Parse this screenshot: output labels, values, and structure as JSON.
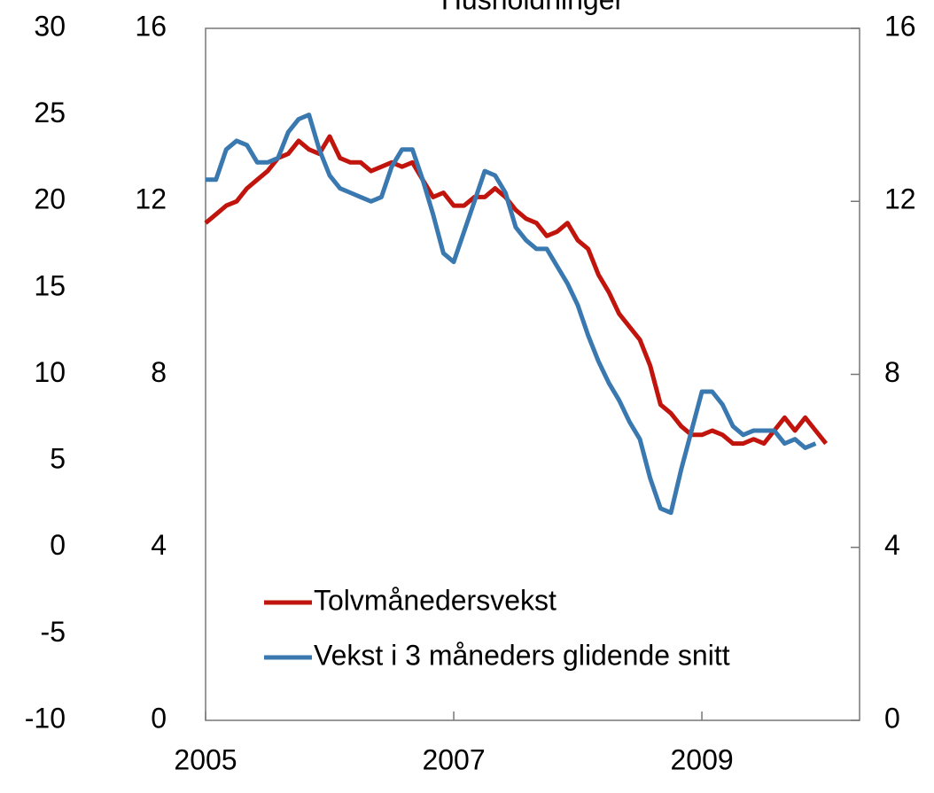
{
  "chart_data": {
    "type": "line",
    "title": "Husholdninger",
    "categories": [
      "2005",
      null,
      null,
      null,
      null,
      null,
      null,
      null,
      null,
      null,
      null,
      null,
      null,
      null,
      null,
      null,
      null,
      null,
      null,
      null,
      null,
      null,
      null,
      null,
      "2007",
      null,
      null,
      null,
      null,
      null,
      null,
      null,
      null,
      null,
      null,
      null,
      null,
      null,
      null,
      null,
      null,
      null,
      null,
      null,
      null,
      null,
      null,
      null,
      "2009",
      null,
      null,
      null,
      null,
      null,
      null,
      null,
      null,
      null,
      null,
      null,
      null
    ],
    "series": [
      {
        "name": "Tolvmånedersvekst",
        "color": "#c0140c",
        "values": [
          11.5,
          11.7,
          11.9,
          12.0,
          12.3,
          12.5,
          12.7,
          13.0,
          13.1,
          13.4,
          13.2,
          13.1,
          13.5,
          13.0,
          12.9,
          12.9,
          12.7,
          12.8,
          12.9,
          12.8,
          12.9,
          12.5,
          12.1,
          12.2,
          11.9,
          11.9,
          12.1,
          12.1,
          12.3,
          12.1,
          11.8,
          11.6,
          11.5,
          11.2,
          11.3,
          11.5,
          11.1,
          10.9,
          10.3,
          9.9,
          9.4,
          9.1,
          8.8,
          8.2,
          7.3,
          7.1,
          6.8,
          6.6,
          6.6,
          6.7,
          6.6,
          6.4,
          6.4,
          6.5,
          6.4,
          6.7,
          7.0,
          6.7,
          7.0,
          6.7,
          6.4
        ]
      },
      {
        "name": "Vekst i 3 måneders glidende snitt",
        "color": "#3a78b0",
        "values": [
          12.5,
          12.5,
          13.2,
          13.4,
          13.3,
          12.9,
          12.9,
          13.0,
          13.6,
          13.9,
          14.0,
          13.2,
          12.6,
          12.3,
          12.2,
          12.1,
          12.0,
          12.1,
          12.8,
          13.2,
          13.2,
          12.5,
          11.7,
          10.8,
          10.6,
          11.3,
          12.0,
          12.7,
          12.6,
          12.2,
          11.4,
          11.1,
          10.9,
          10.9,
          10.5,
          10.1,
          9.6,
          8.9,
          8.3,
          7.8,
          7.4,
          6.9,
          6.5,
          5.6,
          4.9,
          4.8,
          5.8,
          6.7,
          7.6,
          7.6,
          7.3,
          6.8,
          6.6,
          6.7,
          6.7,
          6.7,
          6.4,
          6.5,
          6.3,
          6.4,
          null
        ]
      }
    ],
    "ylim": [
      0,
      16
    ],
    "yticks": [
      0,
      4,
      8,
      12,
      16
    ],
    "y2lim": [
      0,
      16
    ],
    "y2ticks": [
      0,
      4,
      8,
      12,
      16
    ],
    "y3lim": [
      -10,
      30
    ],
    "y3ticks": [
      -10,
      -5,
      0,
      5,
      10,
      15,
      20,
      25,
      30
    ],
    "grid": false,
    "legend": "lower left"
  }
}
